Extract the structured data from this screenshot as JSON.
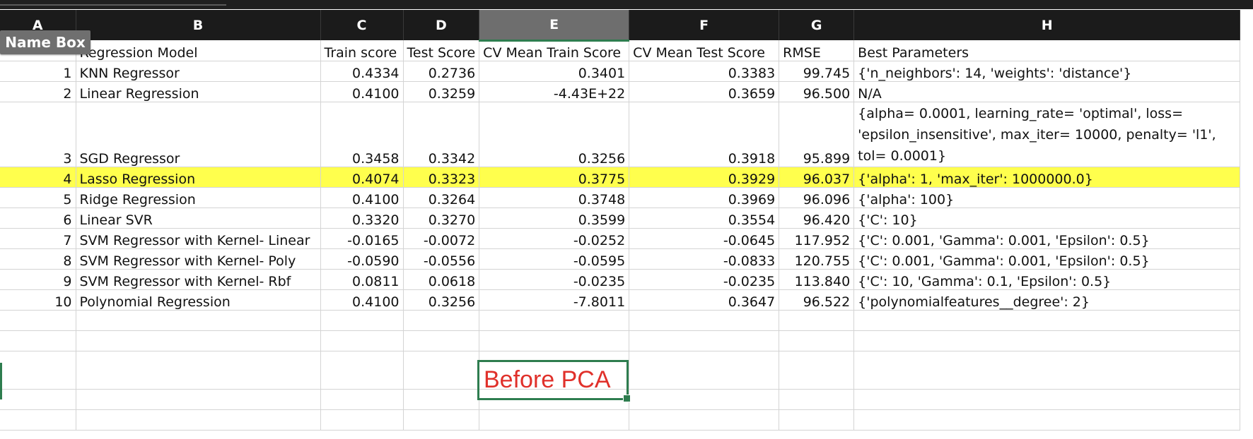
{
  "namebox": {
    "label": "Name Box"
  },
  "columns": [
    "A",
    "B",
    "C",
    "D",
    "E",
    "F",
    "G",
    "H"
  ],
  "selected_cell_text": "Before PCA",
  "header_row": {
    "a": "",
    "model": "Regression Model",
    "train": "Train score",
    "test": "Test Score",
    "cv_train": "CV Mean Train Score",
    "cv_test": "CV Mean Test Score",
    "rmse": "RMSE",
    "params": "Best Parameters"
  },
  "rows": [
    {
      "n": "1",
      "model": "KNN Regressor",
      "train": "0.4334",
      "test": "0.2736",
      "cv_train": "0.3401",
      "cv_test": "0.3383",
      "rmse": "99.745",
      "params": "{'n_neighbors': 14, 'weights': 'distance'}"
    },
    {
      "n": "2",
      "model": "Linear Regression",
      "train": "0.4100",
      "test": "0.3259",
      "cv_train": "-4.43E+22",
      "cv_test": "0.3659",
      "rmse": "96.500",
      "params": "N/A"
    },
    {
      "n": "3",
      "model": "SGD Regressor",
      "train": "0.3458",
      "test": "0.3342",
      "cv_train": "0.3256",
      "cv_test": "0.3918",
      "rmse": "95.899",
      "params": "{alpha= 0.0001, learning_rate= 'optimal', loss= 'epsilon_insensitive', max_iter= 10000, penalty= 'l1', tol= 0.0001}"
    },
    {
      "n": "4",
      "model": "Lasso Regression",
      "train": "0.4074",
      "test": "0.3323",
      "cv_train": "0.3775",
      "cv_test": "0.3929",
      "rmse": "96.037",
      "params": "{'alpha': 1, 'max_iter': 1000000.0}"
    },
    {
      "n": "5",
      "model": "Ridge Regression",
      "train": "0.4100",
      "test": "0.3264",
      "cv_train": "0.3748",
      "cv_test": "0.3969",
      "rmse": "96.096",
      "params": "{'alpha': 100}"
    },
    {
      "n": "6",
      "model": "Linear SVR",
      "train": "0.3320",
      "test": "0.3270",
      "cv_train": "0.3599",
      "cv_test": "0.3554",
      "rmse": "96.420",
      "params": "{'C': 10}"
    },
    {
      "n": "7",
      "model": "SVM Regressor with Kernel- Linear",
      "train": "-0.0165",
      "test": "-0.0072",
      "cv_train": "-0.0252",
      "cv_test": "-0.0645",
      "rmse": "117.952",
      "params": "{'C': 0.001, 'Gamma': 0.001, 'Epsilon': 0.5}"
    },
    {
      "n": "8",
      "model": "SVM Regressor with Kernel- Poly",
      "train": "-0.0590",
      "test": "-0.0556",
      "cv_train": "-0.0595",
      "cv_test": "-0.0833",
      "rmse": "120.755",
      "params": "{'C': 0.001, 'Gamma': 0.001, 'Epsilon': 0.5}"
    },
    {
      "n": "9",
      "model": "SVM Regressor with Kernel- Rbf",
      "train": "0.0811",
      "test": "0.0618",
      "cv_train": "-0.0235",
      "cv_test": "-0.0235",
      "rmse": "113.840",
      "params": "{'C': 10, 'Gamma': 0.1, 'Epsilon': 0.5}"
    },
    {
      "n": "10",
      "model": "Polynomial Regression",
      "train": "0.4100",
      "test": "0.3256",
      "cv_train": "-7.8011",
      "cv_test": "0.3647",
      "rmse": "96.522",
      "params": "{'polynomialfeatures__degree': 2}"
    }
  ],
  "colors": {
    "highlight": "#ffff4d",
    "selection": "#2e7d4f",
    "header_bg": "#1b1b1b",
    "text_red": "#e0302a"
  }
}
